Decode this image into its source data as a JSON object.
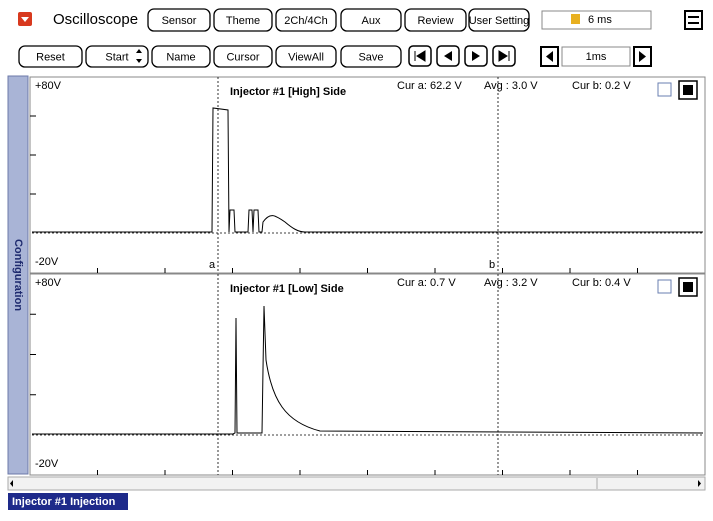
{
  "toolbar": {
    "title": "Oscilloscope",
    "buttons": [
      "Sensor",
      "Theme",
      "2Ch/4Ch",
      "Aux",
      "Review",
      "User Setting"
    ],
    "time": "6 ms"
  },
  "controls": {
    "buttons": [
      "Reset",
      "Start",
      "Name",
      "Cursor",
      "ViewAll",
      "Save"
    ],
    "timebase": "1ms"
  },
  "sidebar": "Configuration",
  "panels": [
    {
      "title": "Injector #1 [High] Side",
      "top_label": "+80V",
      "bottom_label": "-20V",
      "cur_a": "Cur a: 62.2 V",
      "avg": "Avg  : 3.0 V",
      "cur_b": "Cur b: 0.2 V",
      "cursor_a": "a",
      "cursor_b": "b"
    },
    {
      "title": "Injector #1 [Low] Side",
      "top_label": "+80V",
      "bottom_label": "-20V",
      "cur_a": "Cur a: 0.7 V",
      "avg": "Avg  : 3.2 V",
      "cur_b": "Cur b: 0.4 V"
    }
  ],
  "footer": "Injector #1 Injection"
}
